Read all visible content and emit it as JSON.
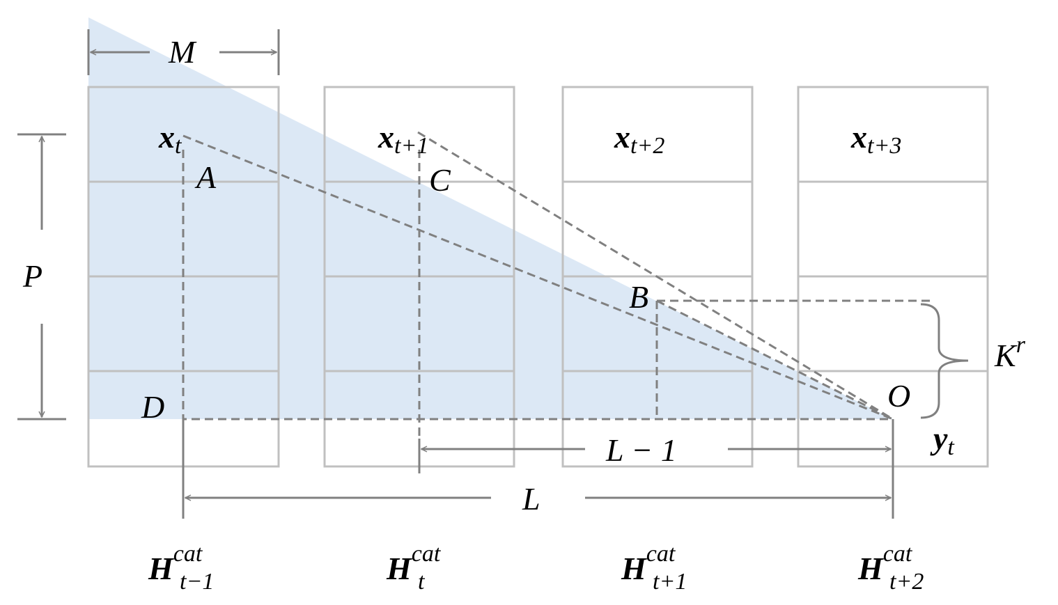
{
  "columns": [
    {
      "top": {
        "base": "x",
        "sub": "t"
      },
      "bottom": {
        "base": "H",
        "sup": "cat",
        "sub": "t−1"
      }
    },
    {
      "top": {
        "base": "x",
        "sub": "t+1"
      },
      "bottom": {
        "base": "H",
        "sup": "cat",
        "sub": "t"
      }
    },
    {
      "top": {
        "base": "x",
        "sub": "t+2"
      },
      "bottom": {
        "base": "H",
        "sup": "cat",
        "sub": "t+1"
      }
    },
    {
      "top": {
        "base": "x",
        "sub": "t+3"
      },
      "bottom": {
        "base": "H",
        "sup": "cat",
        "sub": "t+2"
      }
    }
  ],
  "points": {
    "A": "A",
    "B": "B",
    "C": "C",
    "D": "D",
    "O": "O"
  },
  "output": {
    "base": "y",
    "sub": "t"
  },
  "dimensions": {
    "M": "M",
    "P": "P",
    "L": "L",
    "L_minus_1": "L − 1",
    "K": {
      "base": "K",
      "sup": "r"
    }
  }
}
